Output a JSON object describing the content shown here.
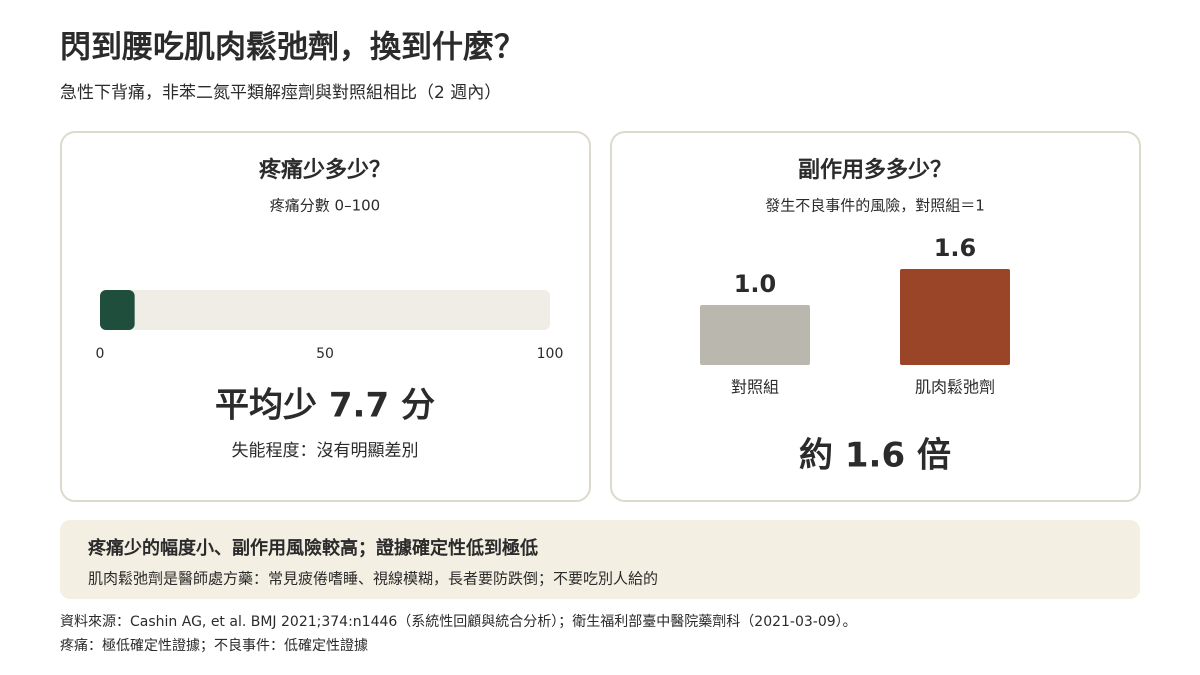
{
  "header": {
    "title": "閃到腰吃肌肉鬆弛劑，換到什麼？",
    "subtitle": "急性下背痛，非苯二氮平類解痙劑與對照組相比（2 週內）"
  },
  "chart_data": [
    {
      "type": "hbar",
      "title": "疼痛少多少？",
      "subtitle": "疼痛分數 0–100",
      "values": [
        7.7
      ],
      "color": "#1f4e3d",
      "xlim": [
        0,
        100
      ],
      "xticks": [
        0,
        50,
        100
      ],
      "annotation": "平均少 7.7 分",
      "note": "失能程度：沒有明顯差別"
    },
    {
      "type": "bar",
      "title": "副作用多多少？",
      "subtitle": "發生不良事件的風險，對照組＝1",
      "categories": [
        "對照組",
        "肌肉鬆弛劑"
      ],
      "values": [
        1.0,
        1.6
      ],
      "value_labels": [
        "1.0",
        "1.6"
      ],
      "colors": [
        "#b9b7ae",
        "#9a4527"
      ],
      "ylim": [
        0,
        1.6
      ],
      "annotation": "約 1.6 倍"
    }
  ],
  "callout": {
    "title": "疼痛少的幅度小、副作用風險較高；證據確定性低到極低",
    "text": "肌肉鬆弛劑是醫師處方藥：常見疲倦嗜睡、視線模糊，長者要防跌倒；不要吃別人給的"
  },
  "footer": {
    "source": "資料來源：Cashin AG, et al. BMJ 2021;374:n1446（系統性回顧與統合分析）；衛生福利部臺中醫院藥劑科（2021-03-09）。",
    "certainty": "疼痛：極低確定性證據；不良事件：低確定性證據"
  }
}
